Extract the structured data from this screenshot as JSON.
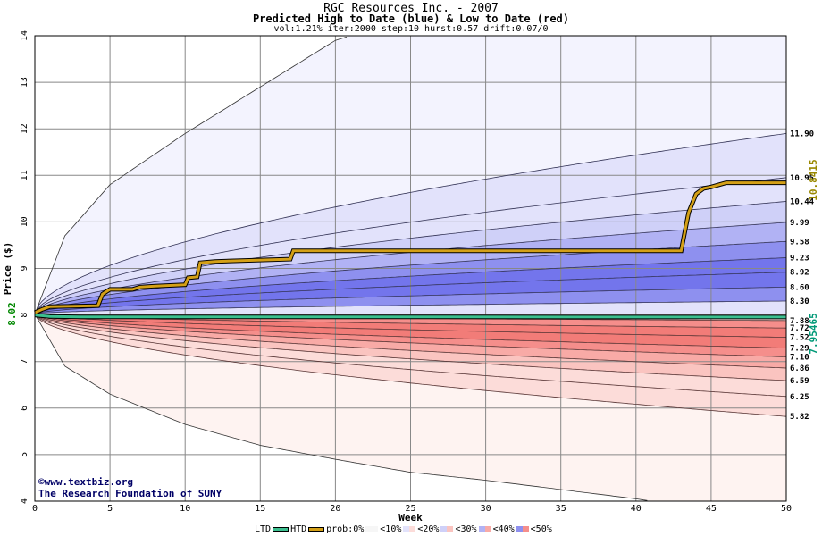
{
  "header": {
    "title": "RGC Resources Inc. - 2007",
    "subtitle": "Predicted High to Date (blue) &  Low to Date (red)",
    "params": "vol:1.21% iter:2000 step:10 hurst:0.57 drift:0.07/0"
  },
  "credit": {
    "line1": "www.textbiz.org",
    "line2": "The Research Foundation of SUNY"
  },
  "legend": {
    "ltd": "LTD",
    "htd": "HTD",
    "prob": "prob:0%",
    "items": [
      "<10%",
      "<20%",
      "<30%",
      "<40%",
      "<50%"
    ]
  },
  "colors": {
    "blue_bands": [
      "#f3f3fe",
      "#e2e2fb",
      "#cfd0f8",
      "#b1b2f4",
      "#8e90ef",
      "#7375ec"
    ],
    "red_bands": [
      "#fef3f1",
      "#fcdcd9",
      "#fac4c0",
      "#f8aaa6",
      "#f58e8b",
      "#f27c78"
    ],
    "htd_line": "#d4a017",
    "ltd_line": "#3cc090",
    "current_price": "#008800",
    "htd_label": "#998800",
    "ltd_label": "#009977"
  },
  "chart_data": {
    "type": "area",
    "xlabel": "Week",
    "ylabel": "Price ($)",
    "xlim": [
      0,
      50
    ],
    "ylim": [
      4,
      14
    ],
    "x_ticks": [
      0,
      5,
      10,
      15,
      20,
      25,
      30,
      35,
      40,
      45,
      50
    ],
    "y_ticks": [
      4,
      5,
      6,
      7,
      8,
      9,
      10,
      11,
      12,
      13,
      14
    ],
    "grid": true,
    "start_price": 8.02,
    "start_label": "8.02",
    "high_labels": [
      "11.90",
      "10.95",
      "10.44",
      "9.99",
      "9.58",
      "9.23",
      "8.92",
      "8.60",
      "8.30"
    ],
    "high_finals": [
      11.9,
      10.95,
      10.44,
      9.99,
      9.58,
      9.23,
      8.92,
      8.6,
      8.3
    ],
    "low_labels": [
      "7.88",
      "7.72",
      "7.52",
      "7.29",
      "7.10",
      "6.86",
      "6.59",
      "6.25",
      "5.82"
    ],
    "low_finals": [
      7.88,
      7.72,
      7.52,
      7.29,
      7.1,
      6.86,
      6.59,
      6.25,
      5.82
    ],
    "outer_high": [
      [
        0,
        8.02
      ],
      [
        2,
        9.7
      ],
      [
        5,
        10.8
      ],
      [
        10,
        11.9
      ],
      [
        15,
        12.9
      ],
      [
        20,
        13.9
      ],
      [
        21,
        14.0
      ]
    ],
    "outer_low": [
      [
        0,
        8.02
      ],
      [
        2,
        6.9
      ],
      [
        5,
        6.3
      ],
      [
        10,
        5.65
      ],
      [
        15,
        5.2
      ],
      [
        20,
        4.9
      ],
      [
        25,
        4.62
      ],
      [
        30,
        4.45
      ],
      [
        35,
        4.25
      ],
      [
        40,
        4.05
      ],
      [
        41,
        4.0
      ]
    ],
    "htd_label": "10.8415",
    "htd_series": [
      [
        0,
        8.05
      ],
      [
        0.5,
        8.12
      ],
      [
        1,
        8.18
      ],
      [
        4.2,
        8.2
      ],
      [
        4.5,
        8.45
      ],
      [
        5,
        8.55
      ],
      [
        6.5,
        8.55
      ],
      [
        7,
        8.6
      ],
      [
        8,
        8.62
      ],
      [
        10,
        8.65
      ],
      [
        10.2,
        8.8
      ],
      [
        10.8,
        8.82
      ],
      [
        11,
        9.12
      ],
      [
        12,
        9.15
      ],
      [
        17,
        9.2
      ],
      [
        17.2,
        9.38
      ],
      [
        20,
        9.38
      ],
      [
        43,
        9.38
      ],
      [
        43.5,
        10.2
      ],
      [
        44,
        10.6
      ],
      [
        44.5,
        10.72
      ],
      [
        45,
        10.75
      ],
      [
        46,
        10.84
      ],
      [
        50,
        10.84
      ]
    ],
    "ltd_label": "7.95465",
    "ltd_series": [
      [
        0,
        8.0
      ],
      [
        1,
        7.97
      ],
      [
        3,
        7.96
      ],
      [
        50,
        7.955
      ]
    ]
  }
}
